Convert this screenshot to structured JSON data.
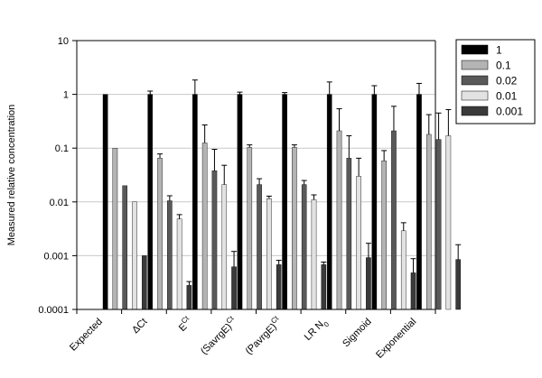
{
  "chart_data": {
    "type": "bar",
    "yscale": "log",
    "ylim": [
      0.0001,
      10
    ],
    "ylabel": "Measured relative concentration",
    "xlabel": "",
    "title": "",
    "grid": true,
    "legend_position": "right",
    "y_ticks": [
      "10",
      "1",
      "0.1",
      "0.01",
      "0.001",
      "0.0001"
    ],
    "categories": [
      {
        "base": "Expected",
        "sup": "",
        "sub": "",
        "after": ""
      },
      {
        "base": "ΔCt",
        "sup": "",
        "sub": "",
        "after": ""
      },
      {
        "base": "E",
        "sup": "Ct",
        "sub": "",
        "after": ""
      },
      {
        "base": "(SavrgE)",
        "sup": "Ct",
        "sub": "",
        "after": ""
      },
      {
        "base": "(PavrgE)",
        "sup": "Ct",
        "sub": "",
        "after": ""
      },
      {
        "base": "LR N",
        "sup": "",
        "sub": "0",
        "after": ""
      },
      {
        "base": "Sigmoid",
        "sup": "",
        "sub": "",
        "after": ""
      },
      {
        "base": "Exponential",
        "sup": "",
        "sub": "",
        "after": ""
      }
    ],
    "series": [
      {
        "name": "1",
        "color": "#000000",
        "values": [
          1,
          1,
          1,
          1,
          1,
          1,
          1,
          1
        ],
        "error_upper": [
          null,
          1.15,
          1.85,
          1.1,
          1.08,
          1.7,
          1.45,
          1.6
        ]
      },
      {
        "name": "0.1",
        "color": "#b4b4b4",
        "values": [
          0.1,
          0.065,
          0.125,
          0.103,
          0.103,
          0.21,
          0.058,
          0.18
        ],
        "error_upper": [
          null,
          0.078,
          0.27,
          0.115,
          0.115,
          0.54,
          0.09,
          0.42
        ]
      },
      {
        "name": "0.02",
        "color": "#595959",
        "values": [
          0.02,
          0.0105,
          0.038,
          0.021,
          0.021,
          0.065,
          0.21,
          0.145
        ],
        "error_upper": [
          null,
          0.013,
          0.095,
          0.027,
          0.025,
          0.17,
          0.6,
          0.45
        ]
      },
      {
        "name": "0.01",
        "color": "#e2e2e2",
        "values": [
          0.01,
          0.0048,
          0.021,
          0.0115,
          0.011,
          0.03,
          0.0029,
          0.17
        ],
        "error_upper": [
          null,
          0.0058,
          0.048,
          0.0128,
          0.0135,
          0.065,
          0.0041,
          0.52
        ]
      },
      {
        "name": "0.001",
        "color": "#3a3a3a",
        "values": [
          0.001,
          0.00028,
          0.00062,
          0.00068,
          0.00068,
          0.00092,
          0.00048,
          0.00085
        ],
        "error_upper": [
          null,
          0.00033,
          0.0012,
          0.00082,
          0.00076,
          0.0017,
          0.00088,
          0.0016
        ]
      }
    ]
  }
}
